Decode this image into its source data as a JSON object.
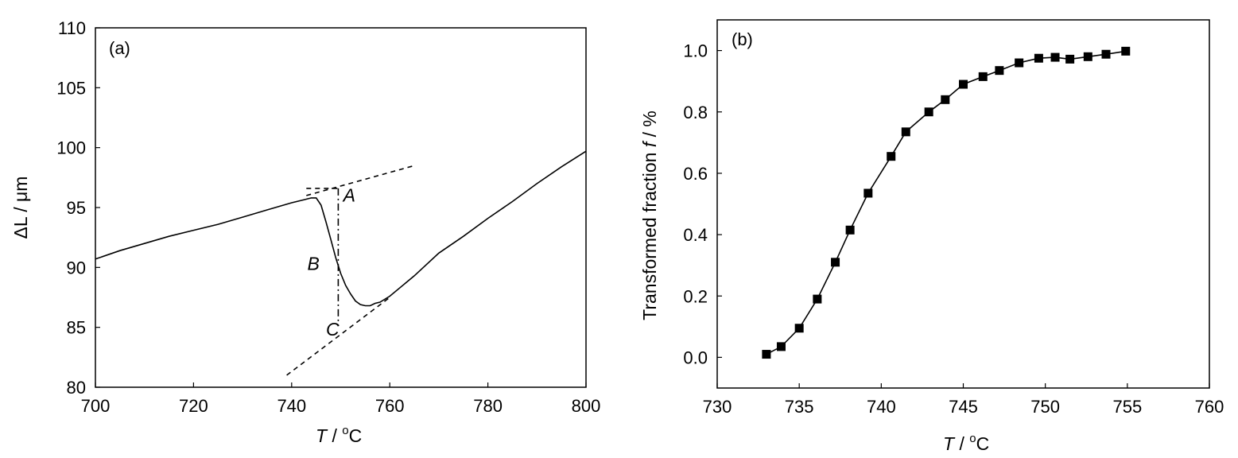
{
  "chart_data": [
    {
      "type": "line",
      "panel_label": "(a)",
      "xlabel_var": "T",
      "xlabel_unit_pre": " / ",
      "xlabel_sup": "o",
      "xlabel_unit": "C",
      "ylabel": "ΔL / μm",
      "xlim": [
        700,
        800
      ],
      "ylim": [
        80,
        110
      ],
      "xticks": [
        "700",
        "720",
        "740",
        "760",
        "780",
        "800"
      ],
      "yticks": [
        "80",
        "85",
        "90",
        "95",
        "100",
        "105",
        "110"
      ],
      "grid": false,
      "series": [
        {
          "style": "solid",
          "x": [
            700,
            705,
            710,
            715,
            720,
            725,
            730,
            735,
            740,
            742,
            744,
            745,
            746,
            747,
            748,
            749,
            750,
            751,
            752,
            753,
            754,
            755,
            756,
            757,
            758,
            760,
            765,
            770,
            775,
            780,
            785,
            790,
            795,
            800
          ],
          "y": [
            90.7,
            91.4,
            92.0,
            92.6,
            93.1,
            93.6,
            94.2,
            94.8,
            95.4,
            95.6,
            95.8,
            95.8,
            95.2,
            93.8,
            92.3,
            90.8,
            89.5,
            88.5,
            87.8,
            87.2,
            86.9,
            86.8,
            86.8,
            87.0,
            87.1,
            87.6,
            89.3,
            91.2,
            92.6,
            94.1,
            95.5,
            97.0,
            98.4,
            99.7
          ]
        },
        {
          "style": "dashed",
          "x": [
            743,
            765
          ],
          "y": [
            96.0,
            98.5
          ]
        },
        {
          "style": "dashed",
          "x": [
            739,
            760
          ],
          "y": [
            81.0,
            87.5
          ]
        },
        {
          "style": "dashdot",
          "x": [
            749.5,
            749.5
          ],
          "y": [
            96.6,
            85.2
          ]
        },
        {
          "style": "dashed",
          "x": [
            743,
            749.5
          ],
          "y": [
            96.6,
            96.6
          ]
        }
      ],
      "annotations": [
        {
          "text": "A",
          "x": 750.5,
          "y": 95.5
        },
        {
          "text": "B",
          "x": 743.2,
          "y": 89.8
        },
        {
          "text": "C",
          "x": 747,
          "y": 84.3
        }
      ]
    },
    {
      "type": "line",
      "panel_label": "(b)",
      "xlabel_var": "T",
      "xlabel_unit_pre": " / ",
      "xlabel_sup": "o",
      "xlabel_unit": "C",
      "ylabel_pre": "Transformed fraction ",
      "ylabel_var": "f",
      "ylabel_post": " / %",
      "xlim": [
        730,
        760
      ],
      "ylim": [
        -0.1,
        1.1
      ],
      "xticks": [
        "730",
        "735",
        "740",
        "745",
        "750",
        "755",
        "760"
      ],
      "yticks": [
        "0.0",
        "0.2",
        "0.4",
        "0.6",
        "0.8",
        "1.0"
      ],
      "grid": false,
      "series": [
        {
          "marker": "square",
          "x": [
            733,
            733.9,
            735,
            736.1,
            737.2,
            738.1,
            739.2,
            740.6,
            741.5,
            742.9,
            743.9,
            745,
            746.2,
            747.2,
            748.4,
            749.6,
            750.6,
            751.5,
            752.6,
            753.7,
            754.9
          ],
          "y": [
            0.01,
            0.035,
            0.095,
            0.19,
            0.31,
            0.415,
            0.535,
            0.655,
            0.735,
            0.8,
            0.84,
            0.89,
            0.915,
            0.935,
            0.96,
            0.975,
            0.978,
            0.972,
            0.98,
            0.988,
            0.998
          ]
        }
      ]
    }
  ]
}
